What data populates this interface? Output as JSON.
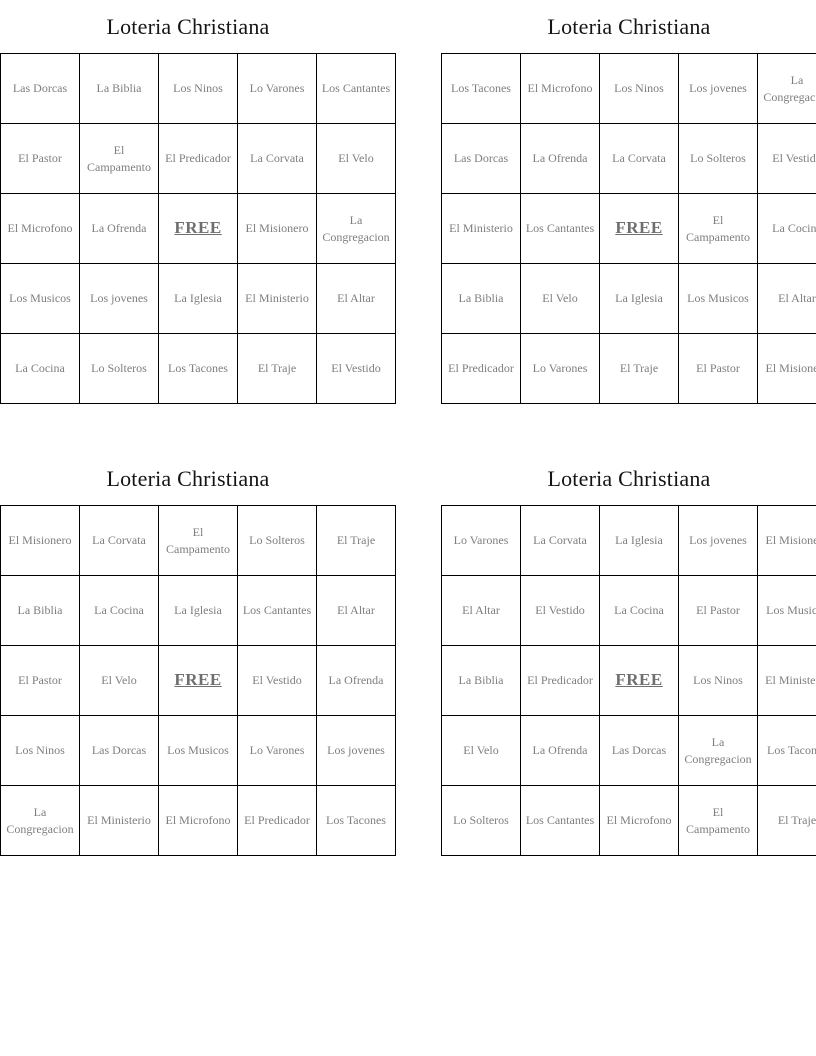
{
  "free_label": "FREE",
  "colors": {
    "page_background": "#ffffff",
    "title_text": "#141414",
    "cell_text": "#7e7e7e",
    "grid_border": "#000000"
  },
  "cards": [
    {
      "title": "Loteria Christiana",
      "rows": [
        [
          "Las Dorcas",
          "La Biblia",
          "Los Ninos",
          "Lo Varones",
          "Los Cantantes"
        ],
        [
          "El Pastor",
          "El Campamento",
          "El Predicador",
          "La Corvata",
          "El Velo"
        ],
        [
          "El Microfono",
          "La Ofrenda",
          "FREE",
          "El Misionero",
          "La Congregacion"
        ],
        [
          "Los Musicos",
          "Los jovenes",
          "La Iglesia",
          "El Ministerio",
          "El Altar"
        ],
        [
          "La Cocina",
          "Lo Solteros",
          "Los Tacones",
          "El Traje",
          "El Vestido"
        ]
      ]
    },
    {
      "title": "Loteria Christiana",
      "rows": [
        [
          "Los Tacones",
          "El Microfono",
          "Los Ninos",
          "Los jovenes",
          "La Congregacion"
        ],
        [
          "Las Dorcas",
          "La Ofrenda",
          "La Corvata",
          "Lo Solteros",
          "El Vestido"
        ],
        [
          "El Ministerio",
          "Los Cantantes",
          "FREE",
          "El Campamento",
          "La Cocina"
        ],
        [
          "La Biblia",
          "El Velo",
          "La Iglesia",
          "Los Musicos",
          "El Altar"
        ],
        [
          "El Predicador",
          "Lo Varones",
          "El Traje",
          "El Pastor",
          "El Misionero"
        ]
      ]
    },
    {
      "title": "Loteria Christiana",
      "rows": [
        [
          "El Misionero",
          "La Corvata",
          "El Campamento",
          "Lo Solteros",
          "El Traje"
        ],
        [
          "La Biblia",
          "La Cocina",
          "La Iglesia",
          "Los Cantantes",
          "El Altar"
        ],
        [
          "El Pastor",
          "El Velo",
          "FREE",
          "El Vestido",
          "La Ofrenda"
        ],
        [
          "Los Ninos",
          "Las Dorcas",
          "Los Musicos",
          "Lo Varones",
          "Los jovenes"
        ],
        [
          "La Congregacion",
          "El Ministerio",
          "El Microfono",
          "El Predicador",
          "Los Tacones"
        ]
      ]
    },
    {
      "title": "Loteria Christiana",
      "rows": [
        [
          "Lo Varones",
          "La Corvata",
          "La Iglesia",
          "Los jovenes",
          "El Misionero"
        ],
        [
          "El Altar",
          "El Vestido",
          "La Cocina",
          "El Pastor",
          "Los Musicos"
        ],
        [
          "La Biblia",
          "El Predicador",
          "FREE",
          "Los Ninos",
          "El Ministerio"
        ],
        [
          "El Velo",
          "La Ofrenda",
          "Las Dorcas",
          "La Congregacion",
          "Los Tacones"
        ],
        [
          "Lo Solteros",
          "Los Cantantes",
          "El Microfono",
          "El Campamento",
          "El Traje"
        ]
      ]
    }
  ]
}
